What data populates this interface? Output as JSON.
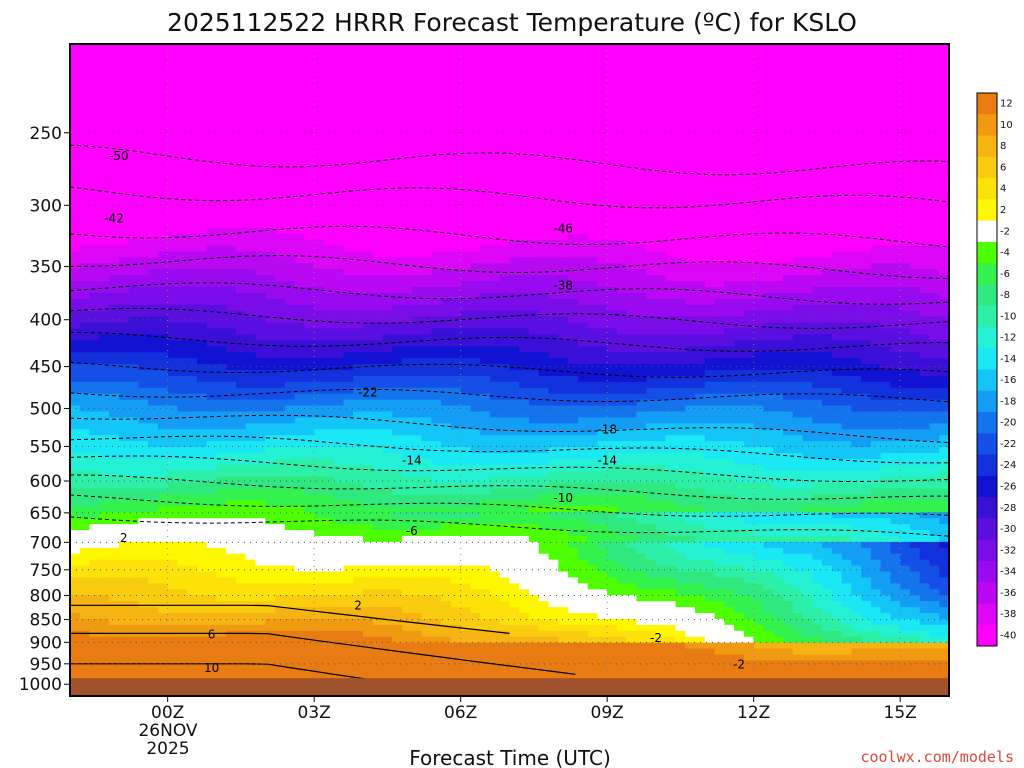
{
  "chart_data": {
    "type": "heatmap",
    "title": "2025112522 HRRR Forecast Temperature (ºC) for KSLO",
    "xlabel": "Forecast Time (UTC)",
    "ylabel": "",
    "x_ticks": [
      "00Z",
      "03Z",
      "06Z",
      "09Z",
      "12Z",
      "15Z"
    ],
    "x_date_label": [
      "26NOV",
      "2025"
    ],
    "y_ticks": [
      "250",
      "300",
      "350",
      "400",
      "450",
      "500",
      "550",
      "600",
      "650",
      "700",
      "750",
      "800",
      "850",
      "900",
      "950",
      "1000"
    ],
    "y_scale": "log",
    "y_range": [
      1030,
      200
    ],
    "x_range": [
      -2,
      16
    ],
    "grid": true,
    "colorbar": {
      "placement": "right",
      "labels": [
        "12",
        "10",
        "8",
        "6",
        "4",
        "2",
        "-2",
        "-4",
        "-6",
        "-8",
        "-10",
        "-12",
        "-14",
        "-16",
        "-18",
        "-20",
        "-22",
        "-24",
        "-26",
        "-28",
        "-30",
        "-32",
        "-34",
        "-36",
        "-38",
        "-40"
      ],
      "colors": [
        "#e87b12",
        "#f09a12",
        "#f6b413",
        "#f9cc10",
        "#fce208",
        "#fff700",
        "#ffffff",
        "#4dff00",
        "#33f24d",
        "#30e880",
        "#2df0a8",
        "#25f2d4",
        "#1ae8f5",
        "#14c6f7",
        "#149df5",
        "#1474ee",
        "#1450e8",
        "#1330dd",
        "#1212d2",
        "#3a10d8",
        "#5a0ee0",
        "#7a0cea",
        "#9a0af0",
        "#bb08f4",
        "#de06f8",
        "#ff00ff"
      ]
    },
    "contour_labels": [
      {
        "text": "-50",
        "x": -1.0,
        "p": 265
      },
      {
        "text": "-42",
        "x": -1.1,
        "p": 310
      },
      {
        "text": "-46",
        "x": 8.1,
        "p": 318
      },
      {
        "text": "-38",
        "x": 8.1,
        "p": 367
      },
      {
        "text": "-22",
        "x": 4.1,
        "p": 480
      },
      {
        "text": "-18",
        "x": 9.0,
        "p": 527
      },
      {
        "text": "-14",
        "x": 5.0,
        "p": 570
      },
      {
        "text": "-14",
        "x": 9.0,
        "p": 570
      },
      {
        "text": "-10",
        "x": 8.1,
        "p": 626
      },
      {
        "text": "-6",
        "x": 5.0,
        "p": 680
      },
      {
        "text": "2",
        "x": -0.9,
        "p": 692
      },
      {
        "text": "2",
        "x": 3.9,
        "p": 820
      },
      {
        "text": "6",
        "x": 0.9,
        "p": 882
      },
      {
        "text": "-2",
        "x": 10.0,
        "p": 890
      },
      {
        "text": "10",
        "x": 0.9,
        "p": 960
      },
      {
        "text": "-2",
        "x": 11.7,
        "p": 952
      }
    ],
    "ground_below_hpa": 985
  },
  "credit": "coolwx.com/models"
}
